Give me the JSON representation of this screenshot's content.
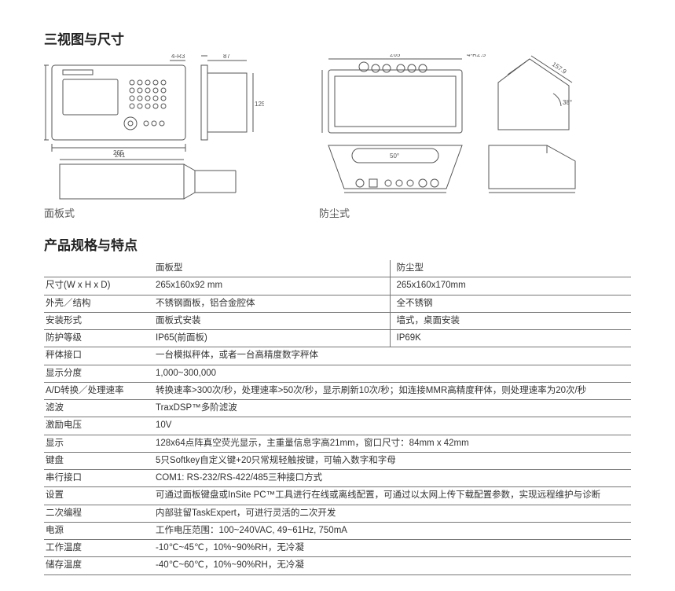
{
  "sections": {
    "views_title": "三视图与尺寸",
    "specs_title": "产品规格与特点"
  },
  "diagram_labels": {
    "panel_style": "面板式",
    "dust_style": "防尘式"
  },
  "diagram_dims": {
    "front_w": "265",
    "front_h": "160",
    "front_radius": "4-R3",
    "side_w": "87",
    "side_notch": "4",
    "side_h": "125",
    "bottom_w": "241",
    "dust_top_w": "265",
    "dust_top_r": "4-R2.5",
    "dust_top_h": "160",
    "dust_angle": "38°",
    "dust_diag": "157.9",
    "dust_front_angle": "50°"
  },
  "spec_header": {
    "col2": "面板型",
    "col3": "防尘型"
  },
  "spec_rows": [
    {
      "label": "尺寸(W x H x D)",
      "v2": "265x160x92 mm",
      "v3": "265x160x170mm",
      "split": true
    },
    {
      "label": "外壳／结构",
      "v2": "不锈钢面板，铝合金腔体",
      "v3": "全不锈钢",
      "split": true
    },
    {
      "label": "安装形式",
      "v2": "面板式安装",
      "v3": "墙式，桌面安装",
      "split": true
    },
    {
      "label": "防护等级",
      "v2": "IP65(前面板)",
      "v3": "IP69K",
      "split": true
    },
    {
      "label": "秤体接口",
      "full": "一台模拟秤体，或者一台高精度数字秤体"
    },
    {
      "label": "显示分度",
      "full": "1,000~300,000"
    },
    {
      "label": "A/D转换／处理速率",
      "full": "转换速率>300次/秒，处理速率>50次/秒，显示刷新10次/秒；如连接MMR高精度秤体，则处理速率为20次/秒"
    },
    {
      "label": "滤波",
      "full": "TraxDSP™多阶滤波"
    },
    {
      "label": "激励电压",
      "full": "10V"
    },
    {
      "label": "显示",
      "full": "128x64点阵真空荧光显示，主重量信息字高21mm，窗口尺寸：84mm x 42mm"
    },
    {
      "label": "键盘",
      "full": "5只Softkey自定义键+20只常规轻触按键，可输入数字和字母"
    },
    {
      "label": "串行接口",
      "full": "COM1: RS-232/RS-422/485三种接口方式"
    },
    {
      "label": "设置",
      "full": "可通过面板键盘或InSite PC™工具进行在线或离线配置，可通过以太网上传下载配置参数，实现远程维护与诊断"
    },
    {
      "label": "二次编程",
      "full": "内部驻留TaskExpert，可进行灵活的二次开发"
    },
    {
      "label": "电源",
      "full": "工作电压范围：100~240VAC, 49~61Hz, 750mA"
    },
    {
      "label": "工作温度",
      "full": "-10℃~45℃，10%~90%RH，无冷凝"
    },
    {
      "label": "储存温度",
      "full": "-40℃~60℃，10%~90%RH，无冷凝"
    }
  ],
  "styling": {
    "border_color": "#777777",
    "text_color": "#333333",
    "diagram_stroke": "#555555",
    "background": "#ffffff",
    "title_fontsize": 17,
    "cell_fontsize": 11.5
  }
}
